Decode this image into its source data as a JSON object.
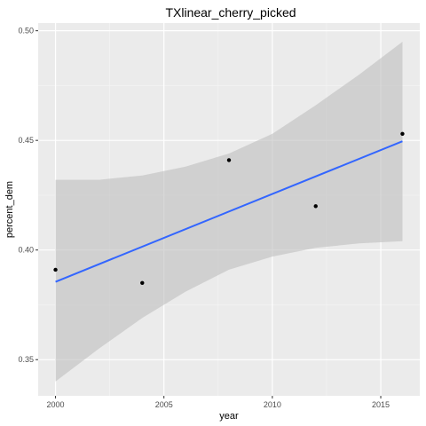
{
  "chart_data": {
    "type": "scatter",
    "title": "TXlinear_cherry_picked",
    "xlabel": "year",
    "ylabel": "percent_dem",
    "xlim": [
      1999.2,
      2016.8
    ],
    "ylim": [
      0.3335,
      0.5035
    ],
    "x_ticks": [
      2000,
      2005,
      2010,
      2015
    ],
    "x_tick_labels": [
      "2000",
      "2005",
      "2010",
      "2015"
    ],
    "y_ticks": [
      0.35,
      0.4,
      0.45,
      0.5
    ],
    "y_tick_labels": [
      "0.35",
      "0.40",
      "0.45",
      "0.50"
    ],
    "grid": true,
    "points": [
      {
        "x": 2000,
        "y": 0.391
      },
      {
        "x": 2004,
        "y": 0.385
      },
      {
        "x": 2008,
        "y": 0.441
      },
      {
        "x": 2012,
        "y": 0.42
      },
      {
        "x": 2016,
        "y": 0.453
      }
    ],
    "fit_line": {
      "x": [
        2000,
        2016
      ],
      "y": [
        0.3855,
        0.4496
      ]
    },
    "confidence_band": [
      {
        "x": 2000,
        "lower": 0.34,
        "upper": 0.432
      },
      {
        "x": 2002,
        "lower": 0.355,
        "upper": 0.432
      },
      {
        "x": 2004,
        "lower": 0.369,
        "upper": 0.434
      },
      {
        "x": 2006,
        "lower": 0.381,
        "upper": 0.438
      },
      {
        "x": 2008,
        "lower": 0.391,
        "upper": 0.444
      },
      {
        "x": 2010,
        "lower": 0.397,
        "upper": 0.453
      },
      {
        "x": 2012,
        "lower": 0.401,
        "upper": 0.466
      },
      {
        "x": 2014,
        "lower": 0.403,
        "upper": 0.48
      },
      {
        "x": 2016,
        "lower": 0.404,
        "upper": 0.495
      }
    ],
    "colors": {
      "panel": "#ebebeb",
      "grid_major": "#ffffff",
      "grid_minor": "#f5f5f5",
      "point": "#000000",
      "fit_line": "#3366ff",
      "band": "#bebebe"
    }
  }
}
